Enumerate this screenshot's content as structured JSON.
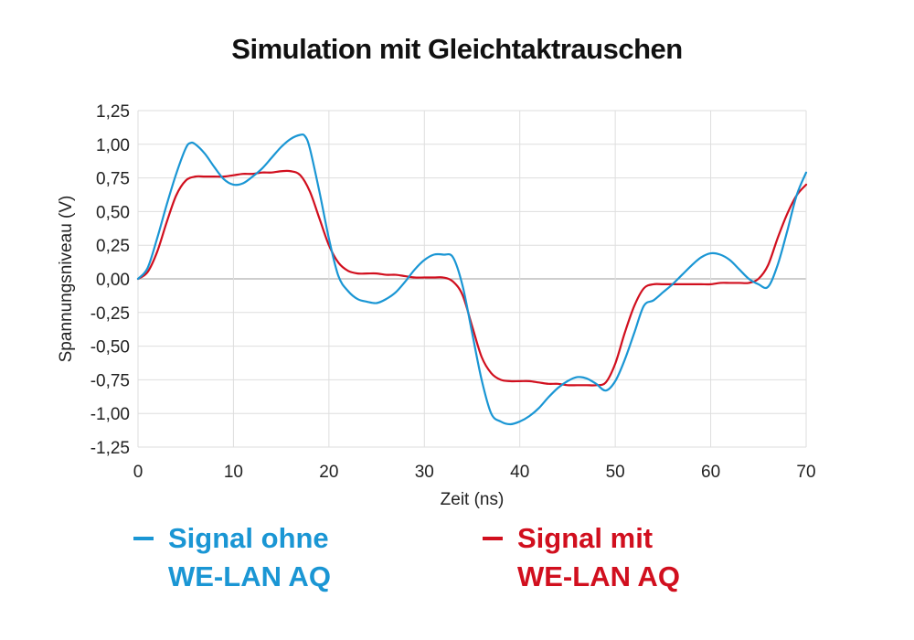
{
  "chart_data": {
    "type": "line",
    "title": "Simulation mit Gleichtaktrauschen",
    "xlabel": "Zeit (ns)",
    "ylabel": "Spannungsniveau (V)",
    "xlim": [
      0,
      70
    ],
    "ylim": [
      -1.25,
      1.25
    ],
    "x_ticks": [
      0,
      10,
      20,
      30,
      40,
      50,
      60,
      70
    ],
    "x_tick_labels": [
      "0",
      "10",
      "20",
      "30",
      "40",
      "50",
      "60",
      "70"
    ],
    "y_ticks": [
      1.25,
      1.0,
      0.75,
      0.5,
      0.25,
      0.0,
      -0.25,
      -0.5,
      -0.75,
      -1.0,
      -1.25
    ],
    "y_tick_labels": [
      "1,25",
      "1,00",
      "0,75",
      "0,50",
      "0,25",
      "0,00",
      "-0,25",
      "-0,50",
      "-0,75",
      "-1,00",
      "-1,25"
    ],
    "grid": true,
    "legend_position": "bottom",
    "series": [
      {
        "name": "Signal ohne WE-LAN AQ",
        "name_lines": [
          "Signal ohne",
          "WE-LAN AQ"
        ],
        "color": "#1a96d4",
        "x": [
          0,
          1,
          2,
          3,
          4,
          5,
          5.5,
          6,
          7,
          8,
          9,
          10,
          11,
          12,
          13,
          14,
          15,
          16,
          17,
          17.5,
          18,
          19,
          20,
          21,
          22,
          23,
          24,
          25,
          26,
          27,
          28,
          29,
          30,
          31,
          32,
          33,
          34,
          35,
          36,
          37,
          38,
          39,
          40,
          41,
          42,
          43,
          44,
          45,
          46,
          47,
          48,
          49,
          50,
          51,
          52,
          53,
          54,
          55,
          56,
          57,
          58,
          59,
          60,
          61,
          62,
          63,
          64,
          65,
          66,
          67,
          68,
          69,
          70
        ],
        "values": [
          0.0,
          0.08,
          0.3,
          0.55,
          0.78,
          0.97,
          1.01,
          1.0,
          0.93,
          0.83,
          0.74,
          0.7,
          0.71,
          0.76,
          0.82,
          0.9,
          0.98,
          1.04,
          1.07,
          1.06,
          0.97,
          0.65,
          0.3,
          0.02,
          -0.09,
          -0.15,
          -0.17,
          -0.18,
          -0.15,
          -0.1,
          -0.02,
          0.07,
          0.14,
          0.18,
          0.18,
          0.16,
          -0.05,
          -0.4,
          -0.75,
          -1.0,
          -1.06,
          -1.08,
          -1.06,
          -1.02,
          -0.96,
          -0.88,
          -0.81,
          -0.76,
          -0.73,
          -0.74,
          -0.78,
          -0.83,
          -0.76,
          -0.6,
          -0.4,
          -0.2,
          -0.16,
          -0.1,
          -0.04,
          0.03,
          0.1,
          0.16,
          0.19,
          0.18,
          0.14,
          0.07,
          0.0,
          -0.04,
          -0.06,
          0.1,
          0.35,
          0.62,
          0.79
        ]
      },
      {
        "name": "Signal mit WE-LAN AQ",
        "name_lines": [
          "Signal mit",
          "WE-LAN AQ"
        ],
        "color": "#d10f1e",
        "x": [
          0,
          1,
          2,
          3,
          4,
          5,
          6,
          7,
          8,
          9,
          10,
          11,
          12,
          13,
          14,
          15,
          16,
          17,
          18,
          19,
          20,
          21,
          22,
          23,
          24,
          25,
          26,
          27,
          28,
          29,
          30,
          31,
          32,
          33,
          34,
          35,
          36,
          37,
          38,
          39,
          40,
          41,
          42,
          43,
          44,
          45,
          46,
          47,
          48,
          49,
          50,
          51,
          52,
          53,
          54,
          55,
          56,
          57,
          58,
          59,
          60,
          61,
          62,
          63,
          64,
          65,
          66,
          67,
          68,
          69,
          70
        ],
        "values": [
          0.0,
          0.05,
          0.2,
          0.42,
          0.62,
          0.73,
          0.76,
          0.76,
          0.76,
          0.76,
          0.77,
          0.78,
          0.78,
          0.79,
          0.79,
          0.8,
          0.8,
          0.77,
          0.65,
          0.45,
          0.25,
          0.12,
          0.06,
          0.04,
          0.04,
          0.04,
          0.03,
          0.03,
          0.02,
          0.01,
          0.01,
          0.01,
          0.01,
          -0.02,
          -0.12,
          -0.35,
          -0.58,
          -0.7,
          -0.75,
          -0.76,
          -0.76,
          -0.76,
          -0.77,
          -0.78,
          -0.78,
          -0.79,
          -0.79,
          -0.79,
          -0.79,
          -0.77,
          -0.63,
          -0.4,
          -0.2,
          -0.07,
          -0.04,
          -0.04,
          -0.04,
          -0.04,
          -0.04,
          -0.04,
          -0.04,
          -0.03,
          -0.03,
          -0.03,
          -0.03,
          0.0,
          0.1,
          0.3,
          0.48,
          0.62,
          0.7
        ]
      }
    ]
  }
}
